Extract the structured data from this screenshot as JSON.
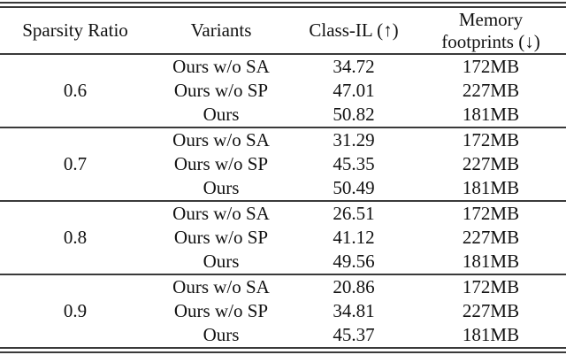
{
  "colors": {
    "background": "#ffffff",
    "text": "#111111",
    "rule": "#3a3a3a"
  },
  "header": {
    "sparsity_ratio": "Sparsity Ratio",
    "variants": "Variants",
    "class_il": "Class-IL (↑)",
    "memory_line1": "Memory",
    "memory_line2": "footprints (↓)"
  },
  "groups": [
    {
      "ratio": "0.6",
      "rows": [
        {
          "variant": "Ours w/o SA",
          "class_il": "34.72",
          "memory": "172MB"
        },
        {
          "variant": "Ours w/o SP",
          "class_il": "47.01",
          "memory": "227MB"
        },
        {
          "variant": "Ours",
          "class_il": "50.82",
          "memory": "181MB"
        }
      ]
    },
    {
      "ratio": "0.7",
      "rows": [
        {
          "variant": "Ours w/o SA",
          "class_il": "31.29",
          "memory": "172MB"
        },
        {
          "variant": "Ours w/o SP",
          "class_il": "45.35",
          "memory": "227MB"
        },
        {
          "variant": "Ours",
          "class_il": "50.49",
          "memory": "181MB"
        }
      ]
    },
    {
      "ratio": "0.8",
      "rows": [
        {
          "variant": "Ours w/o SA",
          "class_il": "26.51",
          "memory": "172MB"
        },
        {
          "variant": "Ours w/o SP",
          "class_il": "41.12",
          "memory": "227MB"
        },
        {
          "variant": "Ours",
          "class_il": "49.56",
          "memory": "181MB"
        }
      ]
    },
    {
      "ratio": "0.9",
      "rows": [
        {
          "variant": "Ours w/o SA",
          "class_il": "20.86",
          "memory": "172MB"
        },
        {
          "variant": "Ours w/o SP",
          "class_il": "34.81",
          "memory": "227MB"
        },
        {
          "variant": "Ours",
          "class_il": "45.37",
          "memory": "181MB"
        }
      ]
    }
  ]
}
